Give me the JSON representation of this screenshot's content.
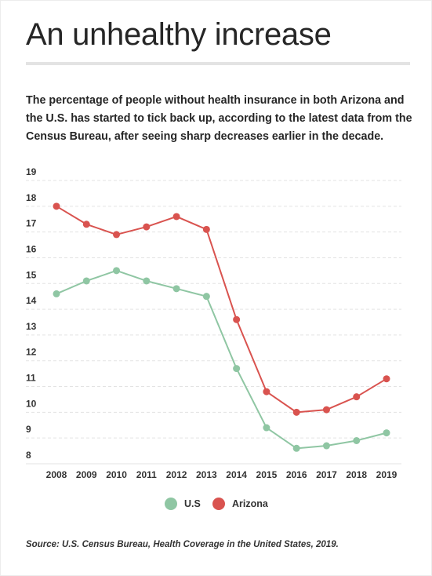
{
  "title": "An unhealthy increase",
  "subtitle": "The percentage of people without health insurance in both Arizona and the U.S. has started to tick back up, according to the latest data from the Census Bureau, after seeing sharp decreases earlier in the decade.",
  "source": "Source: U.S. Census Bureau, Health Coverage in the United States, 2019.",
  "colors": {
    "us": "#8fc6a3",
    "arizona": "#d9534f",
    "grid": "#e3e3e3"
  },
  "chart_data": {
    "type": "line",
    "x": [
      "2008",
      "2009",
      "2010",
      "2011",
      "2012",
      "2013",
      "2014",
      "2015",
      "2016",
      "2017",
      "2018",
      "2019"
    ],
    "ylim": [
      8,
      19
    ],
    "yticks": [
      "8",
      "9",
      "10",
      "11",
      "12",
      "13",
      "14",
      "15",
      "16",
      "17",
      "18",
      "19"
    ],
    "grid": true,
    "legend": "bottom-center",
    "series": [
      {
        "name": "U.S",
        "values": [
          14.6,
          15.1,
          15.5,
          15.1,
          14.8,
          14.5,
          11.7,
          9.4,
          8.6,
          8.7,
          8.9,
          9.2
        ]
      },
      {
        "name": "Arizona",
        "values": [
          18.0,
          17.3,
          16.9,
          17.2,
          17.6,
          17.1,
          13.6,
          10.8,
          10.0,
          10.1,
          10.6,
          11.3
        ]
      }
    ]
  }
}
